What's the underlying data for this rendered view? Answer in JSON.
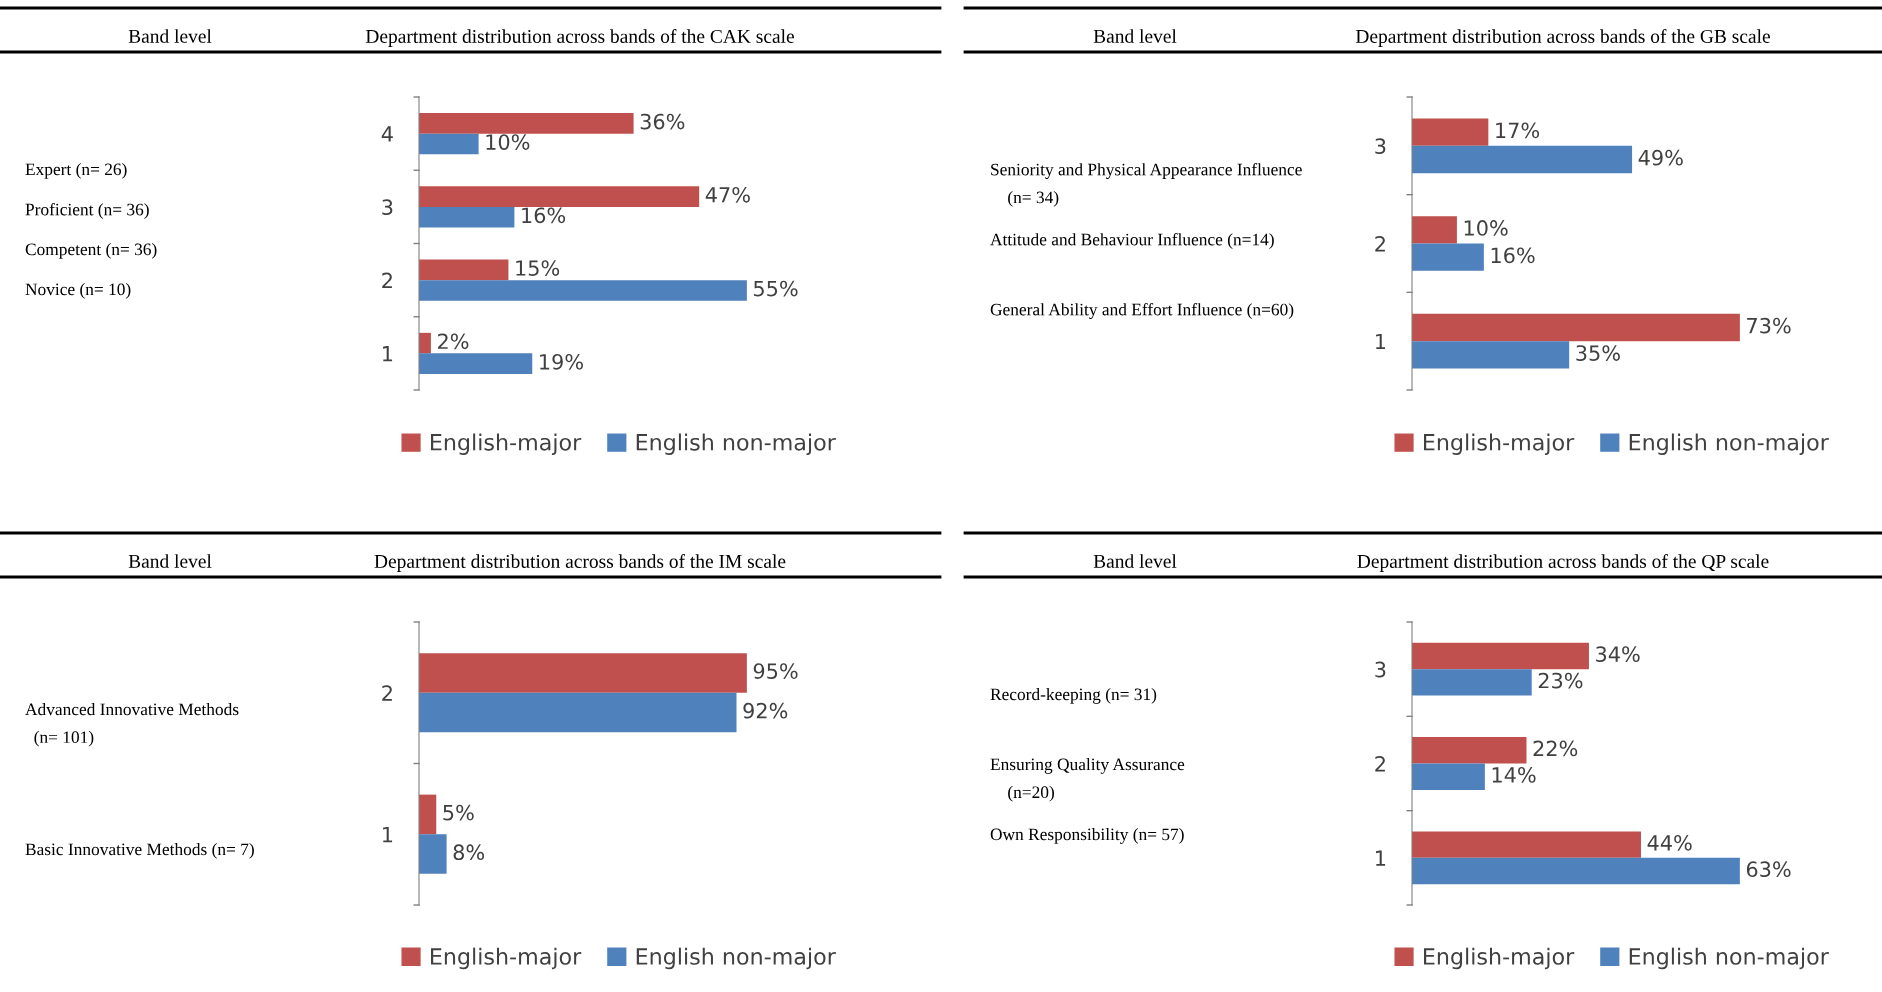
{
  "chart_data": [
    {
      "type": "bar",
      "orientation": "horizontal",
      "title": "Department distribution across bands of the CAK scale",
      "categories": [
        "4",
        "3",
        "2",
        "1"
      ],
      "tick_labels": "y",
      "legend": "bottom",
      "series": [
        {
          "name": "English-major",
          "color": "#c0504d",
          "values": [
            36,
            47,
            15,
            2
          ],
          "value_labels": [
            "36%",
            "47%",
            "15%",
            "2%"
          ]
        },
        {
          "name": "English non-major",
          "color": "#4f81bd",
          "values": [
            10,
            16,
            55,
            19
          ],
          "value_labels": [
            "10%",
            "16%",
            "55%",
            "19%"
          ]
        }
      ],
      "annotations": [
        "Band level",
        "Expert (n= 26)",
        "Proficient (n= 36)",
        "Competent (n= 36)",
        "Novice (n= 10)"
      ]
    },
    {
      "type": "bar",
      "orientation": "horizontal",
      "title": "Department distribution across bands of the GB scale",
      "categories": [
        "3",
        "2",
        "1"
      ],
      "tick_labels": "y",
      "legend": "bottom",
      "series": [
        {
          "name": "English-major",
          "color": "#c0504d",
          "values": [
            17,
            10,
            73
          ],
          "value_labels": [
            "17%",
            "10%",
            "73%"
          ]
        },
        {
          "name": "English non-major",
          "color": "#4f81bd",
          "values": [
            49,
            16,
            35
          ],
          "value_labels": [
            "49%",
            "16%",
            "35%"
          ]
        }
      ],
      "annotations": [
        "Band level",
        "Seniority and Physical Appearance Influence\n    (n= 34)",
        "Attitude and Behaviour Influence (n=14)",
        "General Ability and Effort Influence (n=60)"
      ]
    },
    {
      "type": "bar",
      "orientation": "horizontal",
      "title": "Department distribution across bands of the IM scale",
      "categories": [
        "2",
        "1"
      ],
      "tick_labels": "y",
      "legend": "bottom",
      "series": [
        {
          "name": "English-major",
          "color": "#c0504d",
          "values": [
            95,
            5
          ],
          "value_labels": [
            "95%",
            "5%"
          ]
        },
        {
          "name": "English non-major",
          "color": "#4f81bd",
          "values": [
            92,
            8
          ],
          "value_labels": [
            "92%",
            "8%"
          ]
        }
      ],
      "annotations": [
        "Band level",
        "Advanced Innovative Methods\n  (n= 101)",
        "Basic Innovative Methods (n= 7)"
      ]
    },
    {
      "type": "bar",
      "orientation": "horizontal",
      "title": "Department distribution across bands of the QP scale",
      "categories": [
        "3",
        "2",
        "1"
      ],
      "tick_labels": "y",
      "legend": "bottom",
      "series": [
        {
          "name": "English-major",
          "color": "#c0504d",
          "values": [
            34,
            22,
            44
          ],
          "value_labels": [
            "34%",
            "22%",
            "44%"
          ]
        },
        {
          "name": "English non-major",
          "color": "#4f81bd",
          "values": [
            23,
            14,
            63
          ],
          "value_labels": [
            "23%",
            "14%",
            "63%"
          ]
        }
      ],
      "annotations": [
        "Band level",
        "Record-keeping (n= 31)",
        "Ensuring Quality Assurance\n    (n=20)",
        "Own Responsibility (n= 57)"
      ]
    }
  ]
}
